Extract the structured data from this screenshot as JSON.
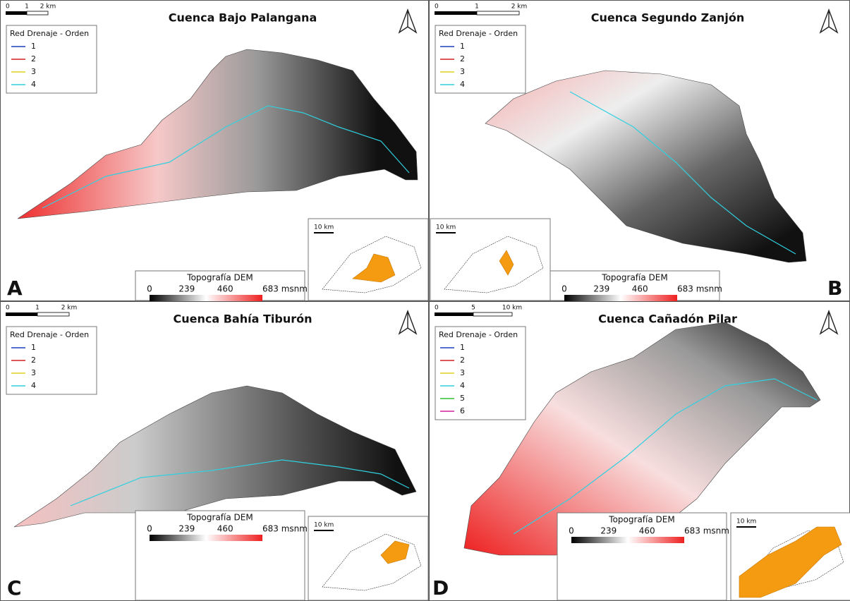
{
  "panels": [
    {
      "letter": "A",
      "title": "Cuenca Bajo Palangana",
      "scale_labels": [
        "0",
        "1",
        "2 km"
      ],
      "legend_title": "Red Drenaje - Orden",
      "legend_items": [
        {
          "label": "1",
          "color": "#1f3fbf"
        },
        {
          "label": "2",
          "color": "#d02020"
        },
        {
          "label": "3",
          "color": "#e0d020"
        },
        {
          "label": "4",
          "color": "#30d0e0"
        }
      ],
      "inset_scale": "10 km",
      "dem_title": "Topografía DEM",
      "dem_labels": [
        "0",
        "239",
        "460",
        "683 msnm"
      ]
    },
    {
      "letter": "B",
      "title": "Cuenca Segundo Zanjón",
      "scale_labels": [
        "0",
        "1",
        "2 km"
      ],
      "legend_title": "Red Drenaje - Orden",
      "legend_items": [
        {
          "label": "1",
          "color": "#1f3fbf"
        },
        {
          "label": "2",
          "color": "#d02020"
        },
        {
          "label": "3",
          "color": "#e0d020"
        },
        {
          "label": "4",
          "color": "#30d0e0"
        }
      ],
      "inset_scale": "10 km",
      "dem_title": "Topografía DEM",
      "dem_labels": [
        "0",
        "239",
        "460",
        "683 msnm"
      ]
    },
    {
      "letter": "C",
      "title": "Cuenca Bahía Tiburón",
      "scale_labels": [
        "0",
        "1",
        "2 km"
      ],
      "legend_title": "Red Drenaje - Orden",
      "legend_items": [
        {
          "label": "1",
          "color": "#1f3fbf"
        },
        {
          "label": "2",
          "color": "#d02020"
        },
        {
          "label": "3",
          "color": "#e0d020"
        },
        {
          "label": "4",
          "color": "#30d0e0"
        }
      ],
      "inset_scale": "10 km",
      "dem_title": "Topografía DEM",
      "dem_labels": [
        "0",
        "239",
        "460",
        "683 msnm"
      ]
    },
    {
      "letter": "D",
      "title": "Cuenca Cañadón Pilar",
      "scale_labels": [
        "0",
        "5",
        "10 km"
      ],
      "legend_title": "Red Drenaje - Orden",
      "legend_items": [
        {
          "label": "1",
          "color": "#1f3fbf"
        },
        {
          "label": "2",
          "color": "#d02020"
        },
        {
          "label": "3",
          "color": "#e0d020"
        },
        {
          "label": "4",
          "color": "#30d0e0"
        },
        {
          "label": "5",
          "color": "#30c030"
        },
        {
          "label": "6",
          "color": "#d020a0"
        }
      ],
      "inset_scale": "10 km",
      "dem_title": "Topografía DEM",
      "dem_labels": [
        "0",
        "239",
        "460",
        "683 msnm"
      ]
    }
  ]
}
